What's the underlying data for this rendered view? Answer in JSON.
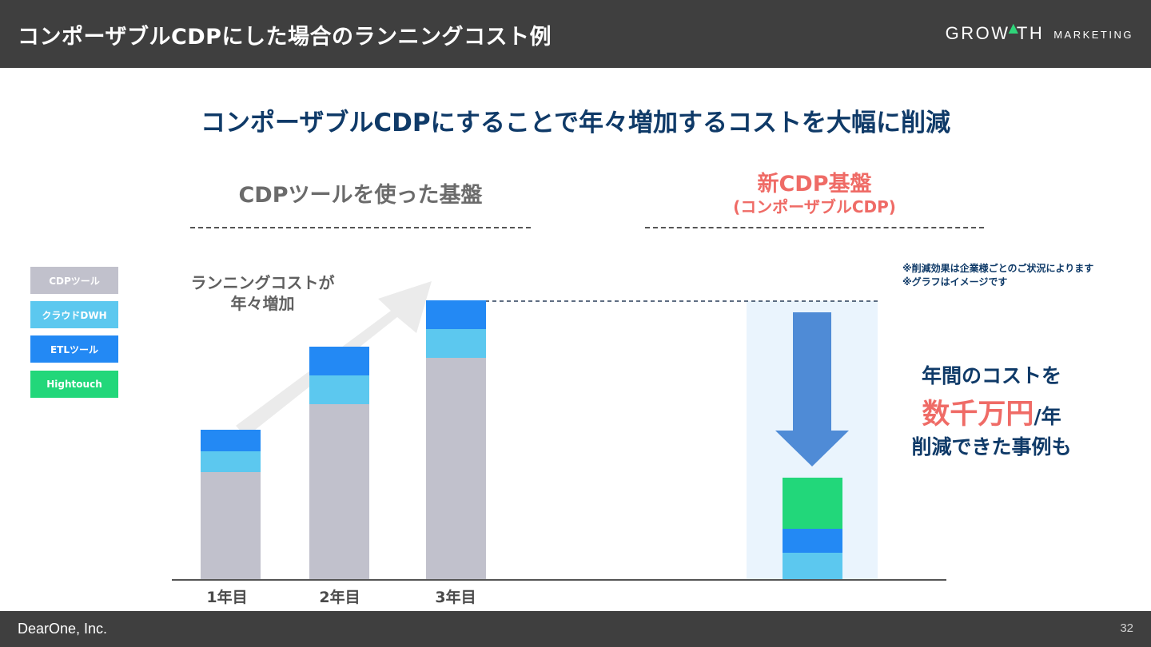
{
  "header": {
    "title": "コンポーザブルCDPにした場合のランニングコスト例",
    "brand_main_pre": "GRO",
    "brand_main_post": "TH",
    "brand_sub": "MARKETING"
  },
  "subtitle": "コンポーザブルCDPにすることで年々増加するコストを大幅に削減",
  "left_section": {
    "title": "CDPツールを使った基盤"
  },
  "right_section": {
    "title": "新CDP基盤",
    "subtitle": "(コンポーザブルCDP)"
  },
  "legend": [
    {
      "label": "CDPツール",
      "color": "#c1c1cc"
    },
    {
      "label": "クラウドDWH",
      "color": "#5cc8ef"
    },
    {
      "label": "ETLツール",
      "color": "#2389f4"
    },
    {
      "label": "Hightouch",
      "color": "#22d77a"
    }
  ],
  "annotation": {
    "line1": "ランニングコストが",
    "line2": "年々増加"
  },
  "notes": [
    "※削減効果は企業様ごとのご状況によります",
    "※グラフはイメージです"
  ],
  "callout": {
    "line1": "年間のコストを",
    "highlight": "数千万円",
    "suffix": "/年",
    "line3": "削減できた事例も"
  },
  "chart_data": {
    "type": "bar",
    "stacked": true,
    "categories": [
      "1年目",
      "2年目",
      "3年目",
      ""
    ],
    "series": [
      {
        "name": "CDPツール",
        "color": "#c1c1cc",
        "values": [
          135,
          220,
          278,
          0
        ]
      },
      {
        "name": "クラウドDWH",
        "color": "#5cc8ef",
        "values": [
          26,
          36,
          36,
          34
        ]
      },
      {
        "name": "ETLツール",
        "color": "#2389f4",
        "values": [
          27,
          36,
          36,
          30
        ]
      },
      {
        "name": "Hightouch",
        "color": "#22d77a",
        "values": [
          0,
          0,
          0,
          64
        ]
      }
    ],
    "title": "",
    "xlabel": "",
    "ylabel": "",
    "ylim": [
      0,
      350
    ],
    "grid": false,
    "legend": "left"
  },
  "colors": {
    "header_bg": "#3f3f3f",
    "navy": "#0f3a68",
    "accent_red": "#ef6b66",
    "down_arrow": "#4f8bd6",
    "highlight_bg": "#eaf4fd"
  },
  "footer": {
    "company": "DearOne, Inc.",
    "page": "32"
  }
}
